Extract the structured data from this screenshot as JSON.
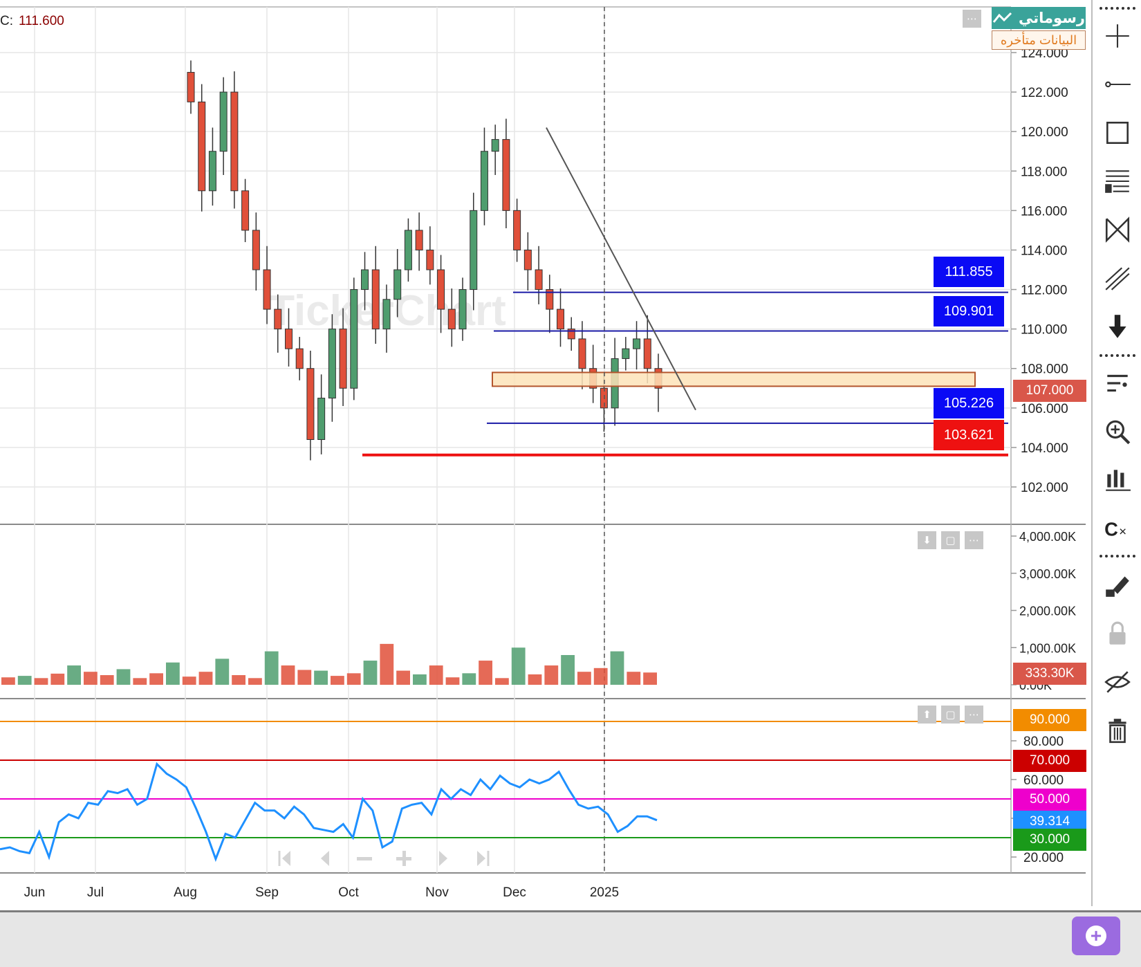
{
  "header": {
    "ohlc_label": "C:",
    "ohlc_value": "111.600",
    "brand_name": "رسوماتي",
    "brand_icon": "line-chart-icon",
    "delayed_label": "البيانات متأخره"
  },
  "colors": {
    "up": "#4f9d6e",
    "down": "#e0503a",
    "grid": "#e6e6e6",
    "resistance_line": "#1a1aa6",
    "support_line": "#ee1111",
    "zone_fill": "#fde3b8",
    "zone_border": "#b4552d",
    "rsi_line": "#1e90ff"
  },
  "chart_data": [
    {
      "type": "candlestick",
      "ylim": [
        101,
        125
      ],
      "y_ticks": [
        "124.000",
        "122.000",
        "120.000",
        "118.000",
        "116.000",
        "114.000",
        "112.000",
        "110.000",
        "108.000",
        "106.000",
        "104.000",
        "102.000"
      ],
      "x_ticks": [
        "Jun",
        "Jul",
        "Aug",
        "Sep",
        "Oct",
        "Nov",
        "Dec",
        "2025"
      ],
      "last_price": "107.000",
      "price_tags": [
        {
          "label": "111.855",
          "value": 111.855,
          "color": "#0a0af5"
        },
        {
          "label": "109.901",
          "value": 109.901,
          "color": "#0a0af5"
        },
        {
          "label": "105.226",
          "value": 105.226,
          "color": "#0a0af5"
        },
        {
          "label": "103.621",
          "value": 103.621,
          "color": "#ee1111"
        }
      ],
      "zone": {
        "low": 107.1,
        "high": 107.8
      },
      "trendline": {
        "from": {
          "date": "2024-12-10",
          "value": 120.2
        },
        "to": {
          "date": "2025-01-20",
          "value": 105.9
        }
      },
      "close_series_approx": [
        121.5,
        117,
        119,
        122,
        117,
        115,
        113,
        111,
        110,
        109,
        108,
        104.4,
        106.5,
        110,
        107,
        112,
        113,
        110,
        111.5,
        113,
        115,
        114,
        113,
        111,
        110,
        112,
        116,
        119,
        119.6,
        116,
        114,
        113,
        112,
        111,
        110,
        109.5,
        108,
        107,
        106,
        108.5,
        109,
        109.5,
        108,
        107
      ]
    },
    {
      "type": "bar",
      "name": "Volume",
      "y_ticks": [
        "4,000.00K",
        "3,000.00K",
        "2,000.00K",
        "1,000.00K",
        "0.00K"
      ],
      "last_value": "333.30K",
      "values_k_approx": [
        200,
        240,
        180,
        300,
        520,
        350,
        260,
        420,
        180,
        310,
        600,
        220,
        350,
        700,
        260,
        180,
        900,
        520,
        400,
        380,
        240,
        310,
        650,
        1100,
        380,
        280,
        520,
        200,
        310,
        650,
        180,
        1000,
        280,
        520,
        800,
        350,
        450,
        900,
        350,
        330
      ]
    },
    {
      "type": "line",
      "name": "RSI",
      "y_ticks": [
        "80.000",
        "60.000",
        "40.000",
        "20.000"
      ],
      "levels": [
        {
          "label": "90.000",
          "value": 90,
          "color": "#f28c00"
        },
        {
          "label": "70.000",
          "value": 70,
          "color": "#cc0000"
        },
        {
          "label": "50.000",
          "value": 50,
          "color": "#ee00cc"
        },
        {
          "label": "30.000",
          "value": 30,
          "color": "#1a9a1a"
        }
      ],
      "current_label": "39.314",
      "current_value": 39.314,
      "values_approx": [
        24,
        25,
        23,
        22,
        33,
        20,
        38,
        42,
        40,
        48,
        47,
        54,
        53,
        55,
        47,
        50,
        68,
        63,
        60,
        56,
        45,
        33,
        19,
        32,
        30,
        39,
        48,
        44,
        44,
        40,
        46,
        42,
        35,
        34,
        33,
        37,
        30,
        50,
        44,
        25,
        28,
        45,
        47,
        48,
        42,
        55,
        50,
        55,
        52,
        60,
        55,
        62,
        58,
        56,
        60,
        58,
        60,
        64,
        55,
        47,
        45,
        46,
        42,
        33,
        36,
        41,
        41,
        39
      ]
    }
  ],
  "navigation": {
    "first_icon": "skip-to-start-icon",
    "prev_icon": "step-back-icon",
    "zoom_out_icon": "minus-icon",
    "zoom_in_icon": "plus-icon",
    "next_icon": "step-forward-icon",
    "last_icon": "skip-to-end-icon"
  },
  "panel_buttons": {
    "volume": [
      "arrow-down-icon",
      "maximize-icon",
      "more-icon"
    ],
    "rsi": [
      "arrow-up-icon",
      "maximize-icon",
      "more-icon"
    ],
    "main": [
      "more-icon"
    ]
  },
  "toolbar": [
    "crosshair-icon",
    "horizontal-line-icon",
    "rectangle-icon",
    "fibonacci-icon",
    "pattern-icon",
    "pitchfork-icon",
    "arrow-down-icon",
    "indicators-icon",
    "zoom-icon",
    "bar-style-icon",
    "compare-icon",
    "draw-lock-icon",
    "lock-icon",
    "hide-icon",
    "trash-icon"
  ],
  "watermark": "TickerChart"
}
